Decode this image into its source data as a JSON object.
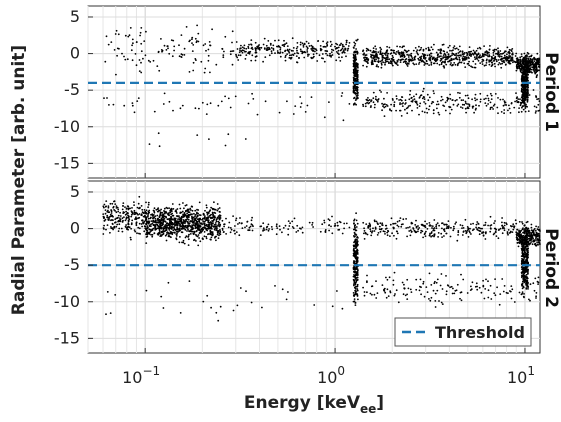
{
  "chart_data": {
    "type": "scatter",
    "xlabel": "Energy [keV",
    "xlabel_sub": "ee",
    "xlabel_close": "]",
    "ylabel": "Radial Parameter  [arb. unit]",
    "x_scale": "log",
    "xlim": [
      0.05,
      12
    ],
    "x_ticks": [
      0.1,
      1,
      10
    ],
    "x_tick_labels": [
      {
        "base": "10",
        "exp": "−1"
      },
      {
        "base": "10",
        "exp": "0"
      },
      {
        "base": "10",
        "exp": "1"
      }
    ],
    "grid": true,
    "legend": {
      "placement": "bottom-right of lower panel",
      "entry": "Threshold",
      "color": "#1f77b4"
    },
    "point_color": "#000000",
    "threshold_color": "#1f77b4",
    "panels": [
      {
        "label": "Period 1",
        "ylim": [
          -17,
          6.5
        ],
        "y_ticks": [
          5,
          0,
          -5,
          -10,
          -15
        ],
        "y_tick_labels": [
          "5",
          "0",
          "-5",
          "-10",
          "-15"
        ],
        "threshold": -4,
        "clusters": [
          {
            "x": [
              0.06,
              0.3
            ],
            "y": [
              -4,
              5
            ],
            "n": 120
          },
          {
            "x": [
              0.3,
              1.2
            ],
            "y": [
              -1.5,
              2.5
            ],
            "n": 280
          },
          {
            "x": [
              1.4,
              9
            ],
            "y": [
              -2.5,
              1.5
            ],
            "n": 700
          },
          {
            "x": [
              9,
              12
            ],
            "y": [
              -3.5,
              0.5
            ],
            "n": 260
          },
          {
            "x": [
              1.25,
              1.32
            ],
            "y": [
              -8.5,
              3
            ],
            "n": 220
          },
          {
            "x": [
              9.6,
              10.4
            ],
            "y": [
              -8.5,
              0.5
            ],
            "n": 320
          },
          {
            "x": [
              1.4,
              12
            ],
            "y": [
              -9,
              -4.5
            ],
            "n": 280
          },
          {
            "x": [
              0.06,
              1.2
            ],
            "y": [
              -10,
              -4
            ],
            "n": 50
          },
          {
            "x": [
              0.06,
              0.4
            ],
            "y": [
              -15,
              -9
            ],
            "n": 8
          }
        ]
      },
      {
        "label": "Period 2",
        "ylim": [
          -17,
          6.5
        ],
        "y_ticks": [
          5,
          0,
          -5,
          -10,
          -15
        ],
        "y_tick_labels": [
          "5",
          "0",
          "-5",
          "-10",
          "-15"
        ],
        "threshold": -5,
        "clusters": [
          {
            "x": [
              0.06,
              0.1
            ],
            "y": [
              -2,
              5
            ],
            "n": 220
          },
          {
            "x": [
              0.1,
              0.25
            ],
            "y": [
              -2.5,
              4
            ],
            "n": 900
          },
          {
            "x": [
              0.25,
              1.2
            ],
            "y": [
              -1.5,
              2
            ],
            "n": 120
          },
          {
            "x": [
              1.4,
              9
            ],
            "y": [
              -2,
              2
            ],
            "n": 300
          },
          {
            "x": [
              9,
              12
            ],
            "y": [
              -3,
              1
            ],
            "n": 250
          },
          {
            "x": [
              1.25,
              1.32
            ],
            "y": [
              -12,
              3.5
            ],
            "n": 260
          },
          {
            "x": [
              9.6,
              10.4
            ],
            "y": [
              -10.5,
              1.5
            ],
            "n": 340
          },
          {
            "x": [
              1.4,
              12
            ],
            "y": [
              -11,
              -5.5
            ],
            "n": 160
          },
          {
            "x": [
              0.06,
              1.2
            ],
            "y": [
              -14,
              -5.5
            ],
            "n": 30
          }
        ]
      }
    ]
  }
}
